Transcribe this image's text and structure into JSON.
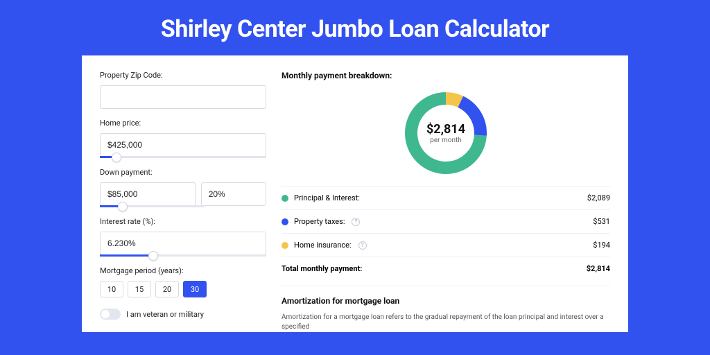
{
  "colors": {
    "page_bg": "#3252f0",
    "wrap_bg": "#2c46c9",
    "card_bg": "#ffffff",
    "border": "#d8dbe3",
    "slider_track": "#e3e6ee",
    "slider_fill": "#3252f0",
    "text": "#222222"
  },
  "title": "Shirley Center Jumbo Loan Calculator",
  "left": {
    "zip": {
      "label": "Property Zip Code:",
      "value": ""
    },
    "home_price": {
      "label": "Home price:",
      "value": "$425,000",
      "slider_pct": 10
    },
    "down_payment": {
      "label": "Down payment:",
      "amount": "$85,000",
      "pct": "20%",
      "slider_pct": 22
    },
    "interest_rate": {
      "label": "Interest rate (%):",
      "value": "6.230%",
      "slider_pct": 32
    },
    "mortgage_period": {
      "label": "Mortgage period (years):",
      "options": [
        "10",
        "15",
        "20",
        "30"
      ],
      "selected": "30"
    },
    "veteran": {
      "label": "I am veteran or military",
      "on": false
    }
  },
  "right": {
    "breakdown_title": "Monthly payment breakdown:",
    "donut": {
      "amount": "$2,814",
      "sub": "per month",
      "radius": 50,
      "thickness": 18,
      "series": [
        {
          "label": "Principal & Interest:",
          "value": "$2,089",
          "pct": 74,
          "color": "#3fb78f",
          "info": false
        },
        {
          "label": "Property taxes:",
          "value": "$531",
          "pct": 19,
          "color": "#3252f0",
          "info": true
        },
        {
          "label": "Home insurance:",
          "value": "$194",
          "pct": 7,
          "color": "#f3c64a",
          "info": true
        }
      ]
    },
    "total": {
      "label": "Total monthly payment:",
      "value": "$2,814"
    },
    "amort": {
      "title": "Amortization for mortgage loan",
      "text": "Amortization for a mortgage loan refers to the gradual repayment of the loan principal and interest over a specified"
    }
  }
}
